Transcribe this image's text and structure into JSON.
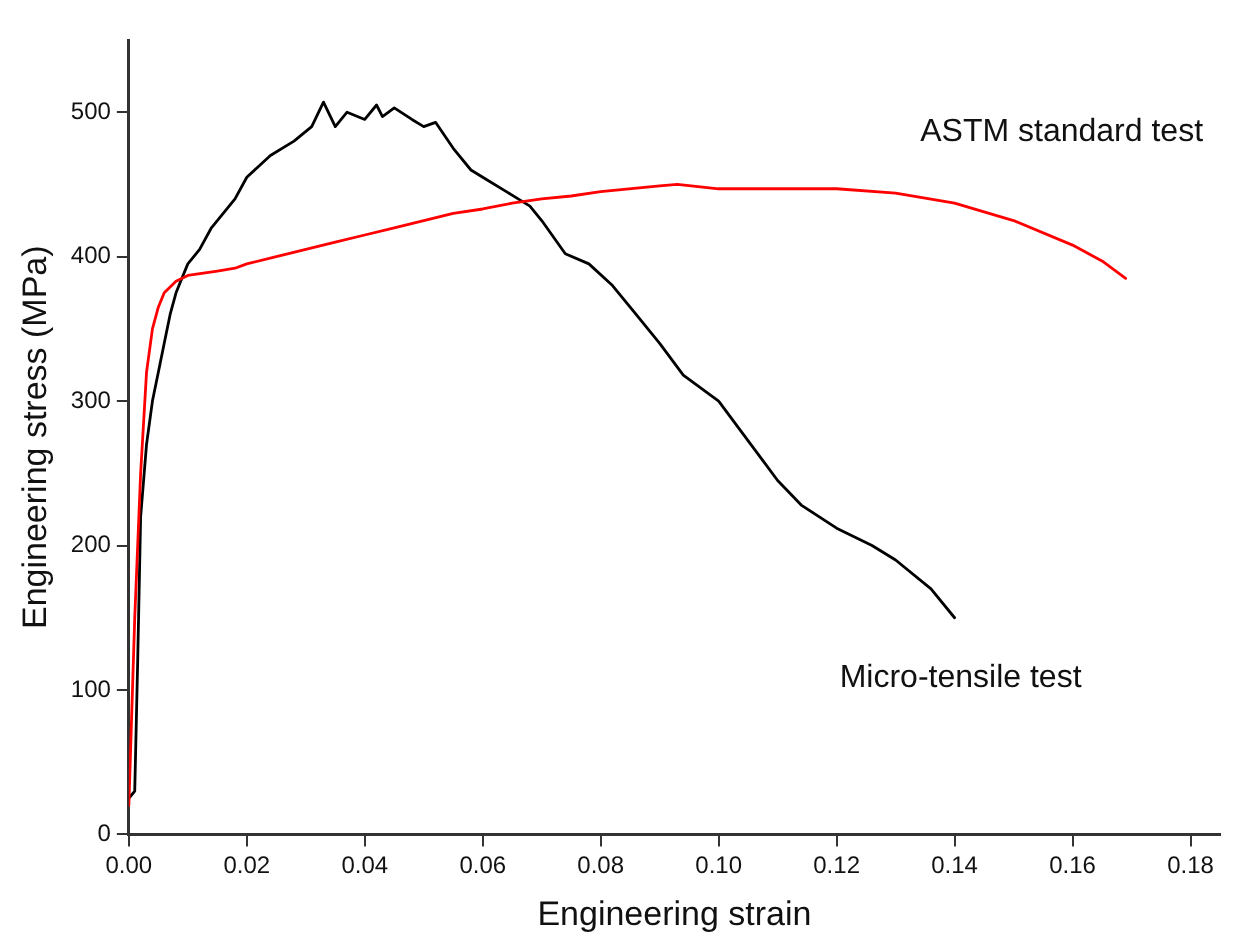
{
  "chart_data": {
    "type": "line",
    "xlabel": "Engineering strain",
    "ylabel": "Engineering stress (MPa)",
    "xlim": [
      0,
      0.185
    ],
    "ylim": [
      0,
      550
    ],
    "xticks": [
      {
        "value": 0,
        "label": "0.00"
      },
      {
        "value": 0.02,
        "label": "0.02"
      },
      {
        "value": 0.04,
        "label": "0.04"
      },
      {
        "value": 0.06,
        "label": "0.06"
      },
      {
        "value": 0.08,
        "label": "0.08"
      },
      {
        "value": 0.1,
        "label": "0.10"
      },
      {
        "value": 0.12,
        "label": "0.12"
      },
      {
        "value": 0.14,
        "label": "0.14"
      },
      {
        "value": 0.16,
        "label": "0.16"
      },
      {
        "value": 0.18,
        "label": "0.18"
      }
    ],
    "yticks": [
      0,
      100,
      200,
      300,
      400,
      500
    ],
    "grid": false,
    "legend": false,
    "marker": "none",
    "line_style": "solid",
    "series": [
      {
        "name": "ASTM standard test",
        "color": "#ff0000",
        "x": [
          0,
          0.001,
          0.002,
          0.003,
          0.004,
          0.005,
          0.006,
          0.008,
          0.01,
          0.015,
          0.018,
          0.02,
          0.025,
          0.03,
          0.035,
          0.04,
          0.045,
          0.05,
          0.055,
          0.06,
          0.065,
          0.07,
          0.075,
          0.08,
          0.09,
          0.093,
          0.1,
          0.11,
          0.12,
          0.13,
          0.14,
          0.15,
          0.16,
          0.165,
          0.169
        ],
        "values": [
          20,
          150,
          250,
          320,
          350,
          365,
          375,
          383,
          387,
          390,
          392,
          395,
          400,
          405,
          410,
          415,
          420,
          425,
          430,
          433,
          437,
          440,
          442,
          445,
          449,
          450,
          447,
          447,
          447,
          444,
          437,
          425,
          408,
          397,
          385
        ]
      },
      {
        "name": "Micro-tensile test",
        "color": "#000000",
        "x": [
          0,
          0.001,
          0.0015,
          0.002,
          0.003,
          0.004,
          0.005,
          0.006,
          0.007,
          0.008,
          0.009,
          0.01,
          0.012,
          0.014,
          0.016,
          0.018,
          0.02,
          0.024,
          0.028,
          0.031,
          0.033,
          0.035,
          0.037,
          0.04,
          0.042,
          0.043,
          0.045,
          0.048,
          0.05,
          0.052,
          0.055,
          0.058,
          0.06,
          0.064,
          0.068,
          0.07,
          0.074,
          0.078,
          0.082,
          0.086,
          0.09,
          0.094,
          0.1,
          0.104,
          0.11,
          0.114,
          0.12,
          0.126,
          0.13,
          0.136,
          0.14
        ],
        "values": [
          25,
          30,
          120,
          220,
          270,
          300,
          320,
          340,
          360,
          375,
          385,
          395,
          405,
          420,
          430,
          440,
          455,
          470,
          480,
          490,
          507,
          490,
          500,
          495,
          505,
          497,
          503,
          495,
          490,
          493,
          475,
          460,
          455,
          445,
          435,
          425,
          402,
          395,
          380,
          360,
          340,
          318,
          300,
          278,
          245,
          228,
          212,
          200,
          190,
          170,
          150
        ]
      }
    ]
  }
}
